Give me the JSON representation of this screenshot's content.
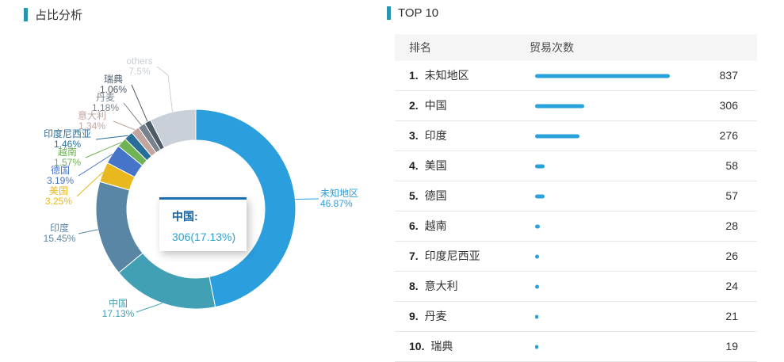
{
  "left_panel": {
    "title": "占比分析"
  },
  "chart_data": {
    "type": "pie",
    "donut": true,
    "title": "占比分析",
    "legend_position": "none",
    "slices": [
      {
        "name": "未知地区",
        "percent": 46.87,
        "label": "46.87%",
        "color": "#2B9FDD"
      },
      {
        "name": "中国",
        "percent": 17.13,
        "label": "17.13%",
        "color": "#42A0B5",
        "value": 306
      },
      {
        "name": "印度",
        "percent": 15.45,
        "label": "15.45%",
        "color": "#5A86A5"
      },
      {
        "name": "美国",
        "percent": 3.25,
        "label": "3.25%",
        "color": "#E9B71E"
      },
      {
        "name": "德国",
        "percent": 3.19,
        "label": "3.19%",
        "color": "#4574C8"
      },
      {
        "name": "越南",
        "percent": 1.57,
        "label": "1.57%",
        "color": "#6FB354"
      },
      {
        "name": "印度尼西亚",
        "percent": 1.46,
        "label": "1.46%",
        "color": "#286E99"
      },
      {
        "name": "意大利",
        "percent": 1.34,
        "label": "1.34%",
        "color": "#C2A59F"
      },
      {
        "name": "丹麦",
        "percent": 1.18,
        "label": "1.18%",
        "color": "#78828C"
      },
      {
        "name": "瑞典",
        "percent": 1.06,
        "label": "1.06%",
        "color": "#4D5A67"
      },
      {
        "name": "others",
        "percent": 7.5,
        "label": "7.5%",
        "color": "#C9D0D7"
      }
    ],
    "tooltip": {
      "title": "中国:",
      "value": "306(17.13%)"
    }
  },
  "top10": {
    "title": "TOP 10",
    "columns": [
      "排名",
      "贸易次数"
    ],
    "bar_color": "#29A2DC",
    "rows": [
      {
        "rank": "1.",
        "name": "未知地区",
        "value": 837
      },
      {
        "rank": "2.",
        "name": "中国",
        "value": 306
      },
      {
        "rank": "3.",
        "name": "印度",
        "value": 276
      },
      {
        "rank": "4.",
        "name": "美国",
        "value": 58
      },
      {
        "rank": "5.",
        "name": "德国",
        "value": 57
      },
      {
        "rank": "6.",
        "name": "越南",
        "value": 28
      },
      {
        "rank": "7.",
        "name": "印度尼西亚",
        "value": 26
      },
      {
        "rank": "8.",
        "name": "意大利",
        "value": 24
      },
      {
        "rank": "9.",
        "name": "丹麦",
        "value": 21
      },
      {
        "rank": "10.",
        "name": "瑞典",
        "value": 19
      }
    ]
  }
}
